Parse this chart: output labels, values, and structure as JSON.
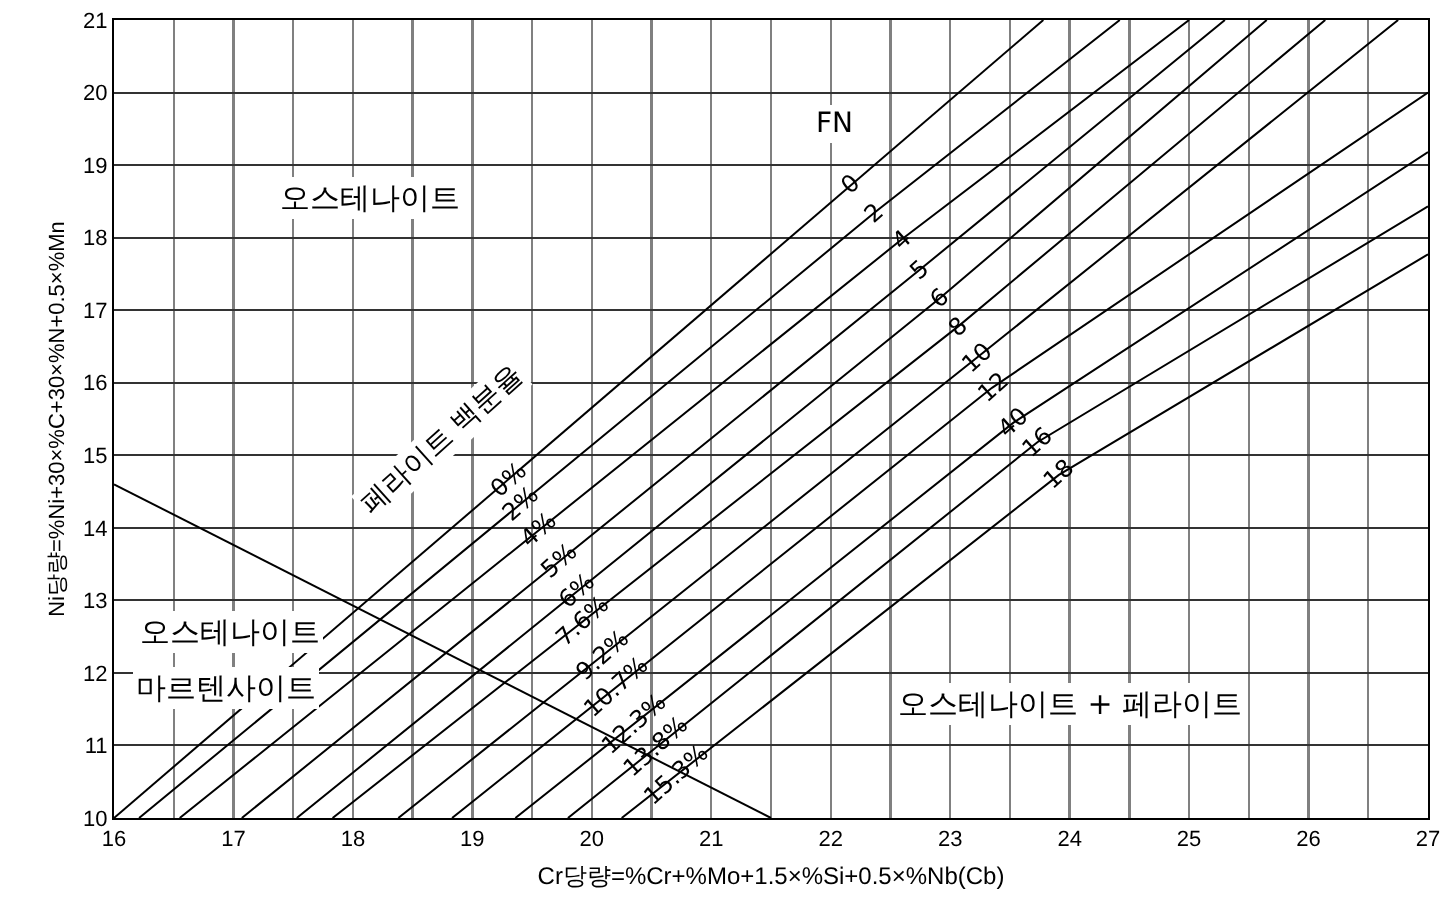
{
  "chart_data": {
    "type": "line",
    "xlabel": "Cr당량=%Cr+%Mo+1.5×%Si+0.5×%Nb(Cb)",
    "ylabel": "Ni당량=%Ni+30×%C+30×%N+0.5×%Mn",
    "xlim": [
      16,
      27
    ],
    "ylim": [
      10,
      21
    ],
    "xticks": [
      16,
      {
        "value": 16.5,
        "label": null
      },
      17,
      {
        "value": 17.5,
        "label": null
      },
      18,
      {
        "value": 18.5,
        "label": null
      },
      19,
      {
        "value": 19.5,
        "label": null
      },
      20,
      {
        "value": 20.5,
        "label": null
      },
      21,
      {
        "value": 21.5,
        "label": null
      },
      22,
      {
        "value": 22.5,
        "label": null
      },
      23,
      {
        "value": 23.5,
        "label": null
      },
      24,
      {
        "value": 24.5,
        "label": null
      },
      25,
      {
        "value": 25.5,
        "label": null
      },
      26,
      {
        "value": 26.5,
        "label": null
      },
      27
    ],
    "yticks": [
      10,
      11,
      12,
      13,
      14,
      15,
      16,
      17,
      18,
      19,
      20,
      21
    ],
    "grid": true,
    "marker": "none",
    "line_style": "solid",
    "series": [
      {
        "color": "#000000",
        "x": [
          16,
          23.78
        ],
        "values": [
          10,
          21
        ]
      },
      {
        "color": "#000000",
        "x": [
          16.21,
          22.37,
          24.42
        ],
        "values": [
          10,
          18.35,
          21
        ]
      },
      {
        "color": "#000000",
        "x": [
          16.55,
          22.59,
          25.0
        ],
        "values": [
          10,
          17.97,
          21
        ]
      },
      {
        "color": "#000000",
        "x": [
          17.07,
          22.74,
          25.3
        ],
        "values": [
          10,
          17.55,
          21
        ]
      },
      {
        "color": "#000000",
        "x": [
          17.53,
          22.91,
          25.65
        ],
        "values": [
          10,
          17.16,
          21
        ]
      },
      {
        "color": "#000000",
        "x": [
          17.83,
          23.07,
          26.14
        ],
        "values": [
          10,
          16.78,
          21
        ]
      },
      {
        "color": "#000000",
        "x": [
          18.38,
          23.22,
          26.75
        ],
        "values": [
          10,
          16.34,
          21
        ]
      },
      {
        "color": "#000000",
        "x": [
          18.83,
          23.35,
          27
        ],
        "values": [
          10,
          15.93,
          20.0
        ]
      },
      {
        "color": "#000000",
        "x": [
          19.36,
          23.53,
          27
        ],
        "values": [
          10,
          15.45,
          19.18
        ]
      },
      {
        "color": "#000000",
        "x": [
          19.8,
          23.73,
          27
        ],
        "values": [
          10,
          15.18,
          18.43
        ]
      },
      {
        "color": "#000000",
        "x": [
          20.25,
          23.91,
          27
        ],
        "values": [
          10,
          14.73,
          17.77
        ]
      },
      {
        "color": "#000000",
        "x": [
          16,
          21.5
        ],
        "values": [
          14.6,
          10
        ]
      }
    ],
    "annotations": [
      "오스테나이트",
      "오스테나이트",
      "마르텐사이트",
      "오스테나이트 + 페라이트",
      "FN",
      "페라이트 백분율",
      {
        "text": "0",
        "x": 22.16,
        "y": 18.75
      },
      {
        "text": "2",
        "x": 22.37,
        "y": 18.35
      },
      {
        "text": "4",
        "x": 22.59,
        "y": 17.97
      },
      {
        "text": "5",
        "x": 22.74,
        "y": 17.55
      },
      {
        "text": "6",
        "x": 22.91,
        "y": 17.16
      },
      {
        "text": "8",
        "x": 23.07,
        "y": 16.78
      },
      {
        "text": "10",
        "x": 23.22,
        "y": 16.34
      },
      {
        "text": "12",
        "x": 23.35,
        "y": 15.93
      },
      {
        "text": "40",
        "x": 23.53,
        "y": 15.45
      },
      {
        "text": "16",
        "x": 23.73,
        "y": 15.18
      },
      {
        "text": "18",
        "x": 23.91,
        "y": 14.73
      },
      {
        "text": "0%",
        "x": 19.3,
        "y": 14.65
      },
      {
        "text": "2%",
        "x": 19.4,
        "y": 14.32
      },
      {
        "text": "4%",
        "x": 19.55,
        "y": 13.96
      },
      {
        "text": "5%",
        "x": 19.73,
        "y": 13.55
      },
      {
        "text": "6%",
        "x": 19.88,
        "y": 13.13
      },
      {
        "text": "7.6%",
        "x": 19.93,
        "y": 12.72
      },
      {
        "text": "9.2%",
        "x": 20.1,
        "y": 12.25
      },
      {
        "text": "10.7%",
        "x": 20.21,
        "y": 11.81
      },
      {
        "text": "12.3%",
        "x": 20.35,
        "y": 11.29
      },
      {
        "text": "13.8%",
        "x": 20.54,
        "y": 10.98
      },
      {
        "text": "15.3%",
        "x": 20.71,
        "y": 10.6
      }
    ]
  }
}
